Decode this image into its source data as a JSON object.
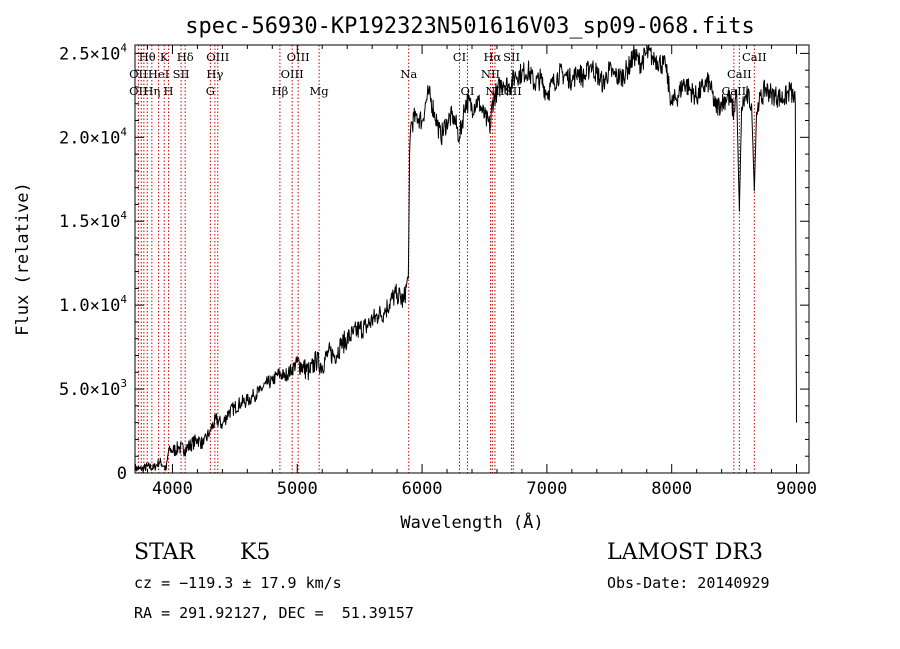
{
  "chart_data": {
    "type": "line",
    "title": "spec-56930-KP192323N501616V03_sp09-068.fits",
    "xlabel": "Wavelength (Å)",
    "ylabel": "Flux (relative)",
    "xlim": [
      3700,
      9100
    ],
    "ylim": [
      0,
      25500
    ],
    "x_ticks": [
      {
        "value": 4000,
        "label": "4000"
      },
      {
        "value": 5000,
        "label": "5000"
      },
      {
        "value": 6000,
        "label": "6000"
      },
      {
        "value": 7000,
        "label": "7000"
      },
      {
        "value": 8000,
        "label": "8000"
      },
      {
        "value": 9000,
        "label": "9000"
      }
    ],
    "y_ticks": [
      {
        "value": 0,
        "mant": "0",
        "exp": ""
      },
      {
        "value": 5000,
        "mant": "5.0×10",
        "exp": "3"
      },
      {
        "value": 10000,
        "mant": "1.0×10",
        "exp": "4"
      },
      {
        "value": 15000,
        "mant": "1.5×10",
        "exp": "4"
      },
      {
        "value": 20000,
        "mant": "2.0×10",
        "exp": "4"
      },
      {
        "value": 25000,
        "mant": "2.5×10",
        "exp": "4"
      }
    ],
    "series": [
      {
        "x": [
          3700,
          3750,
          3800,
          3850,
          3900,
          3930,
          3950,
          3970,
          4000,
          4050,
          4100,
          4150,
          4200,
          4250,
          4300,
          4350,
          4400,
          4450,
          4500,
          4550,
          4600,
          4650,
          4700,
          4750,
          4800,
          4850,
          4900,
          4950,
          5000,
          5050,
          5100,
          5150,
          5200,
          5250,
          5300,
          5350,
          5400,
          5450,
          5500,
          5550,
          5600,
          5650,
          5700,
          5750,
          5800,
          5850,
          5890,
          5900,
          5910,
          5950,
          6000,
          6050,
          6100,
          6150,
          6200,
          6250,
          6300,
          6350,
          6400,
          6450,
          6500,
          6550,
          6560,
          6600,
          6650,
          6700,
          6750,
          6800,
          6850,
          6900,
          6950,
          7000,
          7050,
          7100,
          7150,
          7200,
          7250,
          7300,
          7350,
          7400,
          7450,
          7500,
          7550,
          7600,
          7650,
          7700,
          7750,
          7800,
          7850,
          7900,
          7950,
          8000,
          8050,
          8100,
          8150,
          8200,
          8250,
          8300,
          8350,
          8400,
          8450,
          8498,
          8520,
          8542,
          8560,
          8600,
          8640,
          8662,
          8680,
          8700,
          8750,
          8800,
          8850,
          8900,
          8950,
          8990,
          9000
        ],
        "y": [
          300,
          200,
          400,
          300,
          700,
          400,
          200,
          1400,
          1300,
          1500,
          1400,
          1700,
          2000,
          1700,
          2500,
          3200,
          2900,
          3600,
          3900,
          4200,
          4300,
          4600,
          4900,
          5300,
          5500,
          5900,
          5800,
          6100,
          6600,
          6300,
          6000,
          6700,
          6400,
          7200,
          7000,
          7600,
          8000,
          8300,
          8600,
          8700,
          9100,
          9400,
          9600,
          10300,
          10700,
          10200,
          11600,
          19000,
          20700,
          21300,
          21000,
          22700,
          21500,
          20000,
          21000,
          21300,
          20000,
          22200,
          21800,
          22200,
          21200,
          20600,
          22000,
          22800,
          23300,
          23000,
          23700,
          23800,
          24000,
          23200,
          23500,
          22600,
          23200,
          23800,
          23700,
          23400,
          23900,
          23500,
          24300,
          23800,
          23200,
          24000,
          23600,
          23600,
          24100,
          24900,
          24400,
          25000,
          24800,
          24500,
          24200,
          22000,
          22500,
          23300,
          22800,
          22400,
          23000,
          23300,
          21800,
          22000,
          22500,
          21500,
          22800,
          15600,
          21800,
          22500,
          22000,
          16800,
          21500,
          22000,
          22900,
          22600,
          22400,
          22300,
          22800,
          22100,
          3000
        ]
      }
    ],
    "line_ids": [
      {
        "label": "Hθ",
        "x": 3798,
        "row": 1
      },
      {
        "label": "K",
        "x": 3934,
        "row": 1
      },
      {
        "label": "Hδ",
        "x": 4102,
        "row": 1
      },
      {
        "label": "OIII",
        "x": 4363,
        "row": 1
      },
      {
        "label": "OIII",
        "x": 5007,
        "row": 1
      },
      {
        "label": "CI",
        "x": 6300,
        "row": 1
      },
      {
        "label": "Hα",
        "x": 6563,
        "row": 1
      },
      {
        "label": "SII",
        "x": 6717,
        "row": 1
      },
      {
        "label": "CaII",
        "x": 8662,
        "row": 1
      },
      {
        "label": "OII",
        "x": 3727,
        "row": 2
      },
      {
        "label": "HeI",
        "x": 3889,
        "row": 2
      },
      {
        "label": "SII",
        "x": 4069,
        "row": 2
      },
      {
        "label": "Hγ",
        "x": 4340,
        "row": 2
      },
      {
        "label": "OIII",
        "x": 4959,
        "row": 2
      },
      {
        "label": "Na",
        "x": 5893,
        "row": 2
      },
      {
        "label": "NII",
        "x": 6548,
        "row": 2
      },
      {
        "label": "CaII",
        "x": 8542,
        "row": 2
      },
      {
        "label": "OII",
        "x": 3727,
        "row": 3
      },
      {
        "label": "Hη",
        "x": 3835,
        "row": 3
      },
      {
        "label": "H",
        "x": 3969,
        "row": 3
      },
      {
        "label": "G",
        "x": 4304,
        "row": 3
      },
      {
        "label": "Hβ",
        "x": 4861,
        "row": 3
      },
      {
        "label": "Mg",
        "x": 5175,
        "row": 3
      },
      {
        "label": "OI",
        "x": 6364,
        "row": 3
      },
      {
        "label": "NII",
        "x": 6584,
        "row": 3
      },
      {
        "label": "SII",
        "x": 6731,
        "row": 3
      },
      {
        "label": "CaII",
        "x": 8498,
        "row": 3
      }
    ],
    "marker_lines": [
      3727,
      3750,
      3771,
      3798,
      3835,
      3889,
      3934,
      3969,
      4069,
      4102,
      4304,
      4340,
      4363,
      4861,
      4959,
      5007,
      5175,
      5893,
      6300,
      6364,
      6548,
      6563,
      6584,
      6717,
      6731,
      8498,
      8542,
      8662
    ],
    "line_color": "#000000",
    "marker_color": "#cc0000"
  },
  "info": {
    "class": "STAR",
    "subclass": "K5",
    "survey": "LAMOST DR3",
    "cz": "cz = −119.3 ± 17.9 km/s",
    "obsdate": "Obs-Date: 20140929",
    "coords": "RA = 291.92127, DEC =  51.39157"
  }
}
